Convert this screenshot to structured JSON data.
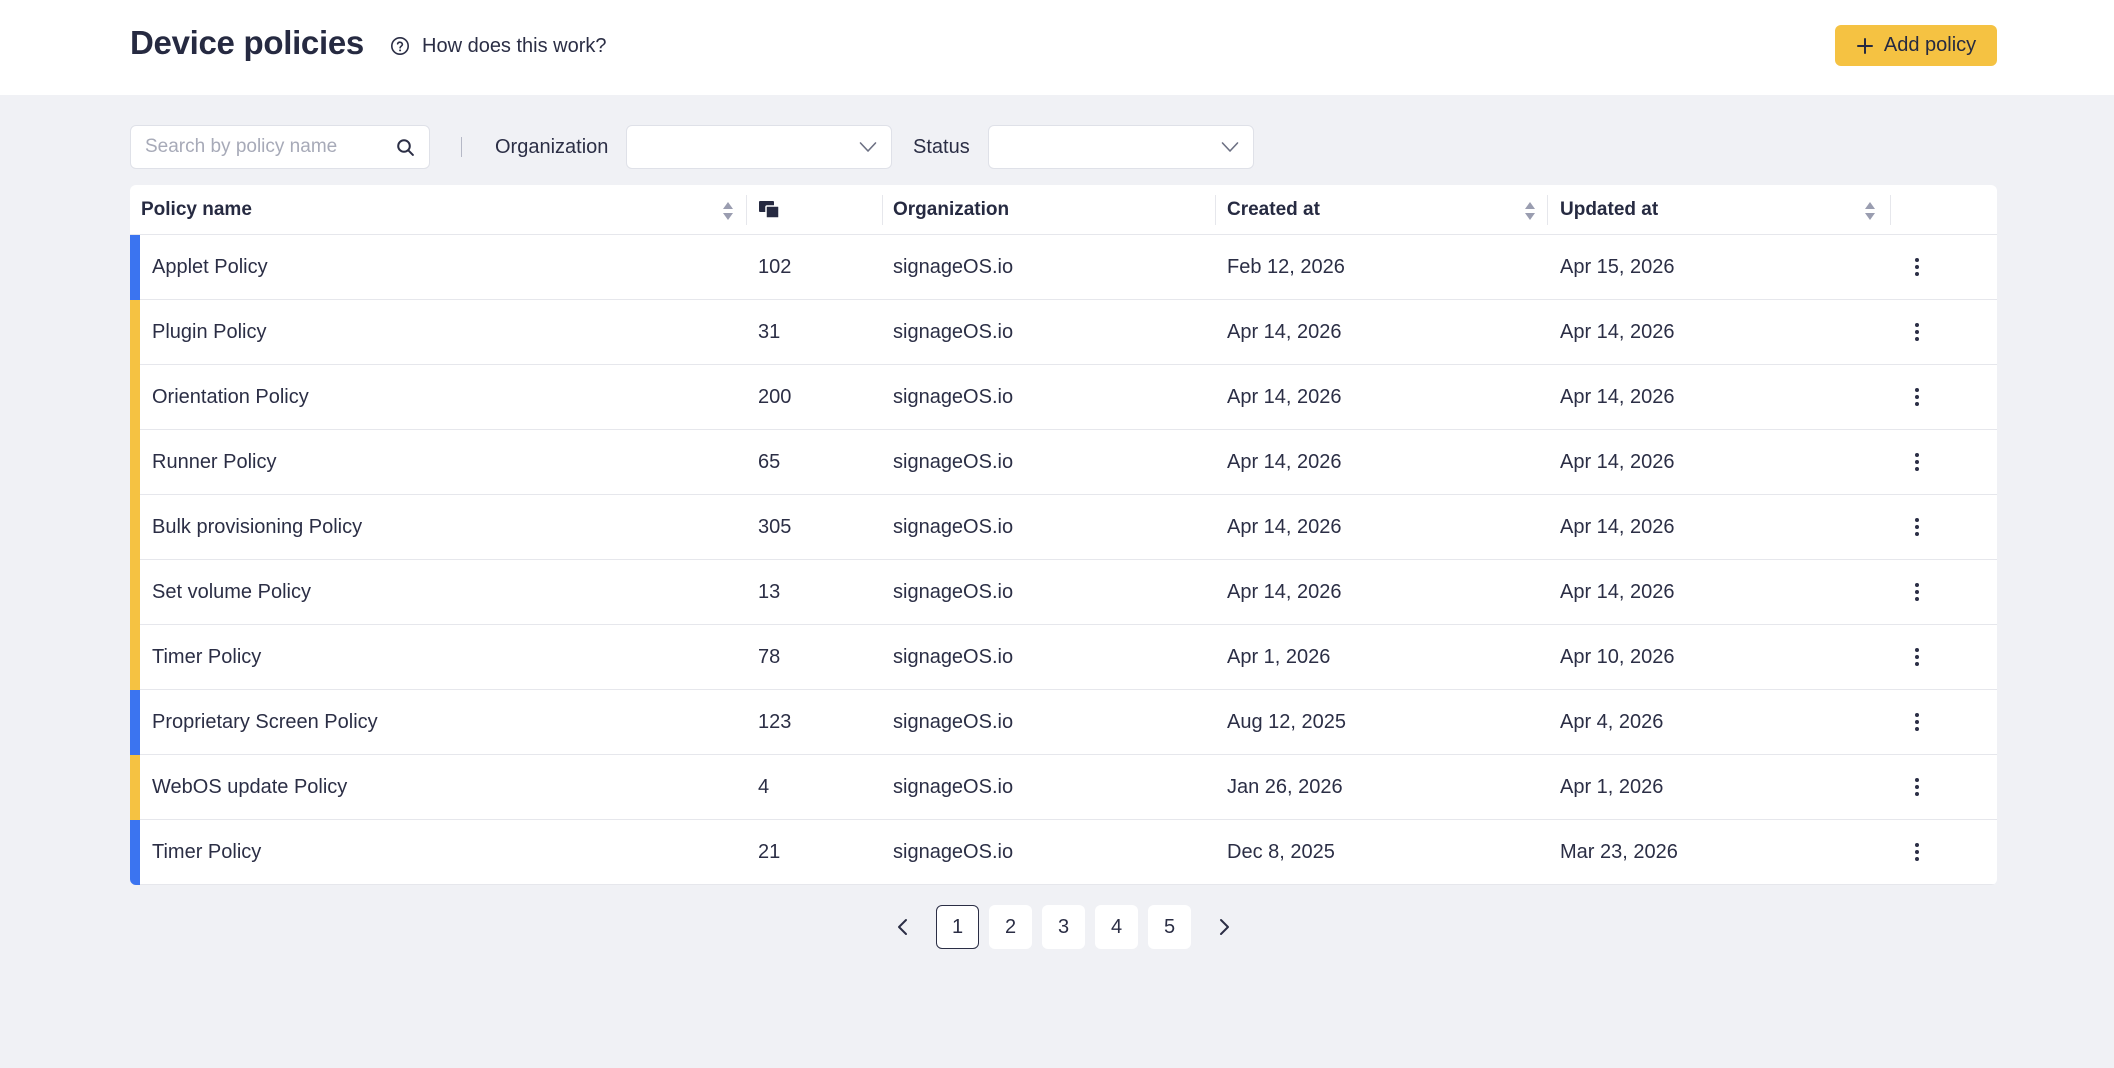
{
  "header": {
    "title": "Device policies",
    "help_label": "How does this work?",
    "add_button_label": "Add policy"
  },
  "filters": {
    "search_placeholder": "Search by policy name",
    "search_value": "",
    "organization_label": "Organization",
    "organization_value": "",
    "status_label": "Status",
    "status_value": ""
  },
  "table": {
    "columns": {
      "policy_name": "Policy name",
      "devices_icon": "devices-icon",
      "organization": "Organization",
      "created_at": "Created at",
      "updated_at": "Updated at"
    },
    "rows": [
      {
        "name": "Applet Policy",
        "devices": "102",
        "organization": "signageOS.io",
        "created": "Feb 12, 2026",
        "updated": "Apr 15, 2026",
        "status_color": "#3b74f0"
      },
      {
        "name": "Plugin Policy",
        "devices": "31",
        "organization": "signageOS.io",
        "created": "Apr 14, 2026",
        "updated": "Apr 14, 2026",
        "status_color": "#f5c242"
      },
      {
        "name": "Orientation Policy",
        "devices": "200",
        "organization": "signageOS.io",
        "created": "Apr 14, 2026",
        "updated": "Apr 14, 2026",
        "status_color": "#f5c242"
      },
      {
        "name": "Runner Policy",
        "devices": "65",
        "organization": "signageOS.io",
        "created": "Apr 14, 2026",
        "updated": "Apr 14, 2026",
        "status_color": "#f5c242"
      },
      {
        "name": "Bulk provisioning Policy",
        "devices": "305",
        "organization": "signageOS.io",
        "created": "Apr 14, 2026",
        "updated": "Apr 14, 2026",
        "status_color": "#f5c242"
      },
      {
        "name": "Set volume Policy",
        "devices": "13",
        "organization": "signageOS.io",
        "created": "Apr 14, 2026",
        "updated": "Apr 14, 2026",
        "status_color": "#f5c242"
      },
      {
        "name": "Timer Policy",
        "devices": "78",
        "organization": "signageOS.io",
        "created": "Apr 1, 2026",
        "updated": "Apr 10, 2026",
        "status_color": "#f5c242"
      },
      {
        "name": "Proprietary Screen Policy",
        "devices": "123",
        "organization": "signageOS.io",
        "created": "Aug 12, 2025",
        "updated": "Apr 4, 2026",
        "status_color": "#3b74f0"
      },
      {
        "name": "WebOS update Policy",
        "devices": "4",
        "organization": "signageOS.io",
        "created": "Jan 26, 2026",
        "updated": "Apr 1, 2026",
        "status_color": "#f5c242"
      },
      {
        "name": "Timer Policy",
        "devices": "21",
        "organization": "signageOS.io",
        "created": "Dec 8, 2025",
        "updated": "Mar 23, 2026",
        "status_color": "#3b74f0"
      }
    ]
  },
  "pagination": {
    "pages": [
      "1",
      "2",
      "3",
      "4",
      "5"
    ],
    "current": "1"
  },
  "colors": {
    "accent": "#f5c242",
    "blue_status": "#3b74f0",
    "yellow_status": "#f5c242"
  }
}
